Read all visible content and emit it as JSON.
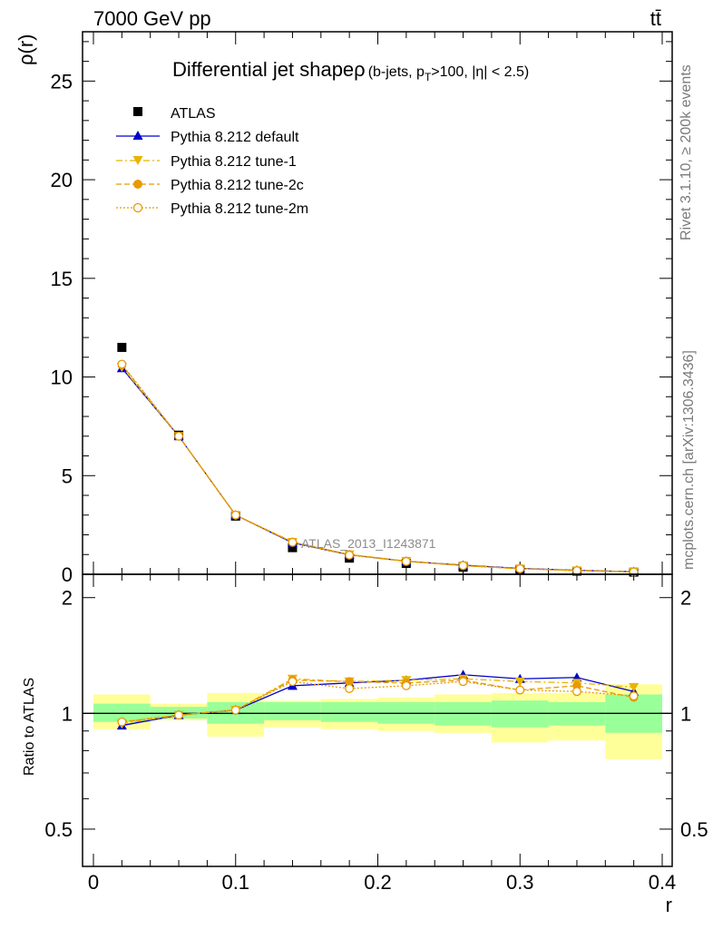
{
  "header": {
    "left": "7000 GeV pp",
    "right": "tt̄"
  },
  "side_labels": {
    "rivet": "Rivet 3.1.10, ≥ 200k events",
    "mcplots": "mcplots.cern.ch [arXiv:1306.3436]"
  },
  "analysis_id": "ATLAS_2013_I1243871",
  "chart_data": [
    {
      "type": "line",
      "title_main": "Differential jet shape",
      "title_rho": "ρ",
      "title_sub": "(b-jets, p",
      "title_sub_T": "T",
      "title_sub_rest": ">100, |η| < 2.5)",
      "xlabel": "r",
      "ylabel": "ρ(r)",
      "xlim": [
        0,
        0.4
      ],
      "ylim": [
        0,
        27.5
      ],
      "y_ticks": [
        0,
        5,
        10,
        15,
        20,
        25
      ],
      "y_tick_labels": [
        "0",
        "5",
        "10",
        "15",
        "20",
        "25"
      ],
      "legend_position": "top-left",
      "x": [
        0.02,
        0.06,
        0.1,
        0.14,
        0.18,
        0.22,
        0.26,
        0.3,
        0.34,
        0.38
      ],
      "series": [
        {
          "name": "ATLAS",
          "color": "#000000",
          "marker": "square",
          "line": "none",
          "values": [
            11.5,
            7.05,
            2.95,
            1.35,
            0.82,
            0.55,
            0.36,
            0.24,
            0.16,
            0.11
          ]
        },
        {
          "name": "Pythia 8.212 default",
          "color": "#0000cc",
          "marker": "triangle-up",
          "line": "solid",
          "values": [
            10.45,
            7.0,
            3.0,
            1.6,
            0.99,
            0.66,
            0.46,
            0.3,
            0.2,
            0.13
          ]
        },
        {
          "name": "Pythia 8.212 tune-1",
          "color": "#e8b400",
          "marker": "triangle-down",
          "line": "dashdot",
          "values": [
            10.5,
            7.0,
            3.0,
            1.63,
            1.0,
            0.67,
            0.44,
            0.29,
            0.19,
            0.13
          ]
        },
        {
          "name": "Pythia 8.212 tune-2c",
          "color": "#e89a00",
          "marker": "circle",
          "line": "dashed",
          "values": [
            10.6,
            7.0,
            3.0,
            1.64,
            1.0,
            0.66,
            0.44,
            0.28,
            0.19,
            0.12
          ]
        },
        {
          "name": "Pythia 8.212 tune-2m",
          "color": "#e89a00",
          "marker": "circle-open",
          "line": "dotted",
          "values": [
            10.65,
            7.0,
            3.0,
            1.62,
            0.97,
            0.65,
            0.44,
            0.28,
            0.18,
            0.12
          ]
        }
      ]
    },
    {
      "type": "line",
      "xlabel": "r",
      "ylabel": "Ratio to ATLAS",
      "xlim": [
        0,
        0.4
      ],
      "ylim": [
        0.4,
        2.3
      ],
      "y_ticks": [
        0.5,
        1,
        2
      ],
      "y_tick_labels": [
        "0.5",
        "1",
        "2"
      ],
      "x_ticks": [
        0,
        0.1,
        0.2,
        0.3,
        0.4
      ],
      "x_tick_labels": [
        "0",
        "0.1",
        "0.2",
        "0.3",
        "0.4"
      ],
      "reference_line": 1,
      "x_edges": [
        0.0,
        0.04,
        0.08,
        0.12,
        0.16,
        0.2,
        0.24,
        0.28,
        0.32,
        0.36,
        0.4
      ],
      "band_inner": [
        [
          0.95,
          1.06
        ],
        [
          0.97,
          1.04
        ],
        [
          0.94,
          1.07
        ],
        [
          0.96,
          1.07
        ],
        [
          0.95,
          1.07
        ],
        [
          0.94,
          1.07
        ],
        [
          0.93,
          1.07
        ],
        [
          0.92,
          1.08
        ],
        [
          0.93,
          1.07
        ],
        [
          0.89,
          1.12
        ]
      ],
      "band_outer": [
        [
          0.91,
          1.12
        ],
        [
          0.96,
          1.06
        ],
        [
          0.87,
          1.13
        ],
        [
          0.92,
          1.08
        ],
        [
          0.91,
          1.09
        ],
        [
          0.9,
          1.1
        ],
        [
          0.89,
          1.12
        ],
        [
          0.84,
          1.13
        ],
        [
          0.85,
          1.13
        ],
        [
          0.76,
          1.19
        ]
      ],
      "band_colors": {
        "outer": "#ffff99",
        "inner": "#99ff99"
      },
      "x": [
        0.02,
        0.06,
        0.1,
        0.14,
        0.18,
        0.22,
        0.26,
        0.3,
        0.34,
        0.38
      ],
      "series": [
        {
          "name": "Pythia 8.212 default",
          "color": "#0000cc",
          "marker": "triangle-up",
          "line": "solid",
          "values": [
            0.93,
            0.99,
            1.02,
            1.18,
            1.2,
            1.22,
            1.26,
            1.23,
            1.24,
            1.14
          ]
        },
        {
          "name": "Pythia 8.212 tune-1",
          "color": "#e8b400",
          "marker": "triangle-down",
          "line": "dashdot",
          "values": [
            0.94,
            0.99,
            1.02,
            1.23,
            1.21,
            1.22,
            1.23,
            1.21,
            1.2,
            1.17
          ]
        },
        {
          "name": "Pythia 8.212 tune-2c",
          "color": "#e89a00",
          "marker": "circle",
          "line": "dashed",
          "values": [
            0.95,
            0.99,
            1.02,
            1.22,
            1.21,
            1.2,
            1.22,
            1.15,
            1.18,
            1.1
          ]
        },
        {
          "name": "Pythia 8.212 tune-2m",
          "color": "#e89a00",
          "marker": "circle-open",
          "line": "dotted",
          "values": [
            0.95,
            0.99,
            1.02,
            1.21,
            1.16,
            1.18,
            1.21,
            1.15,
            1.14,
            1.11
          ]
        }
      ]
    }
  ]
}
